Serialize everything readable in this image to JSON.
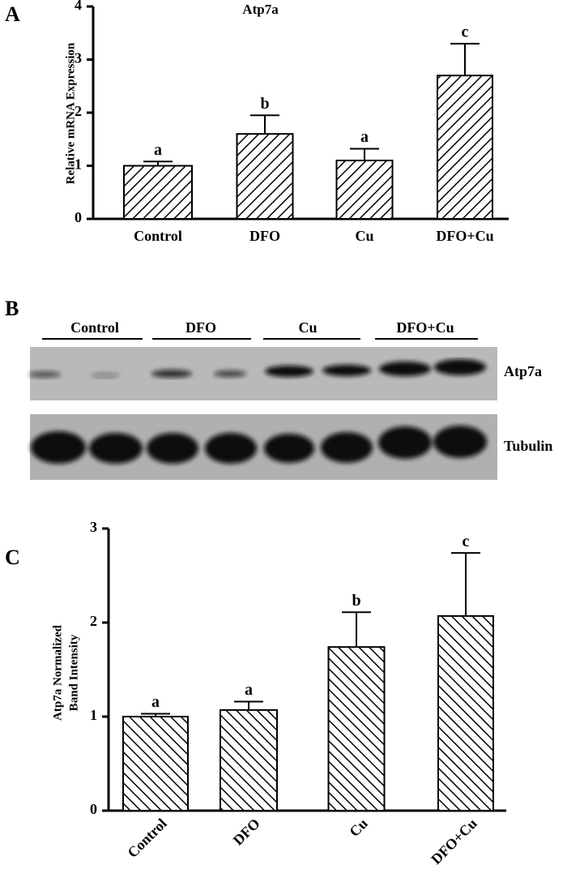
{
  "chart_data": [
    {
      "type": "bar",
      "title": "Atp7a",
      "ylabel": [
        "Relative mRNA Expression"
      ],
      "categories": [
        "Control",
        "DFO",
        "Cu",
        "DFO+Cu"
      ],
      "values": [
        1.0,
        1.6,
        1.1,
        2.7
      ],
      "errors": [
        0.08,
        0.35,
        0.22,
        0.6
      ],
      "value_labels": [
        "a",
        "b",
        "a",
        "c"
      ],
      "color": "#000000",
      "hatch": "backslash",
      "ylim": [
        0,
        4
      ],
      "yticks": [
        0,
        1,
        2,
        3,
        4
      ]
    },
    {
      "type": "bar",
      "ylabel": [
        "Atp7a Normalized",
        "Band Intensity"
      ],
      "categories": [
        "Control",
        "DFO",
        "Cu",
        "DFO+Cu"
      ],
      "values": [
        1.0,
        1.07,
        1.74,
        2.07
      ],
      "errors": [
        0.03,
        0.09,
        0.37,
        0.67
      ],
      "value_labels": [
        "a",
        "a",
        "b",
        "c"
      ],
      "color": "#000000",
      "hatch": "slash",
      "ylim": [
        0,
        3
      ],
      "yticks": [
        0,
        1,
        2,
        3
      ]
    }
  ],
  "panel_labels": [
    "A",
    "B",
    "C"
  ],
  "blot": {
    "group_labels": [
      "Control",
      "DFO",
      "Cu",
      "DFO+Cu"
    ],
    "band_labels": [
      "Atp7a",
      "Tubulin"
    ]
  }
}
